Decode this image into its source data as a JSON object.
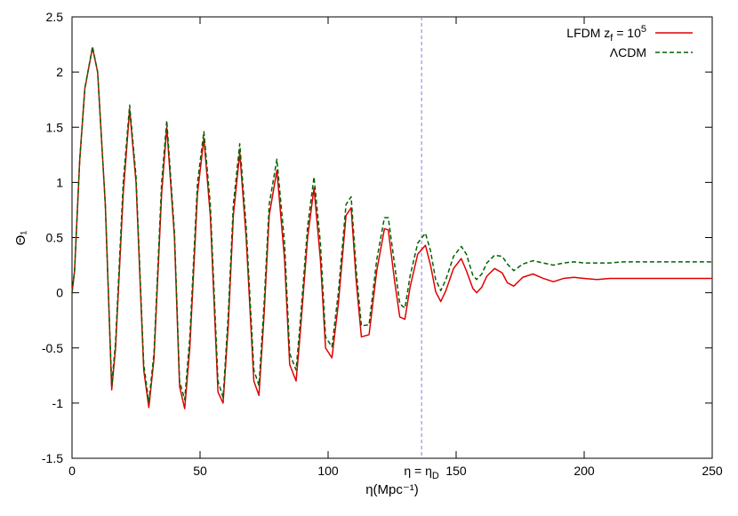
{
  "chart_data": {
    "type": "line",
    "xlabel": "η(Mpc⁻¹)",
    "ylabel": "Θ₁",
    "xlim": [
      0,
      250
    ],
    "ylim": [
      -1.5,
      2.5
    ],
    "x_ticks": [
      "0",
      "50",
      "100",
      "150",
      "200",
      "250"
    ],
    "y_ticks": [
      "-1.5",
      "-1",
      "-0.5",
      "0",
      "0.5",
      "1",
      "1.5",
      "2",
      "2.5"
    ],
    "grid": false,
    "legend_position": "top-right",
    "annotation": {
      "text": "η = η",
      "subscript": "D",
      "x": 136.5,
      "line_style": "dashed",
      "color": "#8080e0"
    },
    "series": [
      {
        "name": "LFDM z",
        "name_sub": "f",
        "name_rest": " = 10",
        "name_sup": "5",
        "color": "#e00000",
        "line_style": "solid",
        "x": [
          0,
          1,
          3,
          5,
          8,
          10,
          13,
          15.5,
          17,
          20,
          22.5,
          25,
          28,
          30,
          32,
          35,
          37,
          40,
          42,
          44,
          46,
          49,
          51.5,
          54,
          57,
          59,
          61,
          63,
          65.5,
          68,
          71,
          73,
          75,
          77,
          80,
          83,
          85,
          87.5,
          89,
          92,
          94.5,
          97,
          99,
          101.5,
          104,
          107,
          109,
          111,
          113,
          116,
          119,
          122,
          123.5,
          126,
          128,
          130,
          132,
          135,
          138,
          140,
          142,
          144,
          146,
          149,
          152,
          154,
          156.5,
          158,
          160,
          162,
          165,
          168,
          170,
          172.5,
          176,
          180,
          184,
          188,
          192,
          196,
          200,
          205,
          210,
          215,
          220,
          230,
          240,
          250
        ],
        "y": [
          0,
          0.2,
          1.2,
          1.85,
          2.22,
          2.0,
          0.8,
          -0.88,
          -0.5,
          0.9,
          1.66,
          1.0,
          -0.7,
          -1.04,
          -0.6,
          0.9,
          1.5,
          0.5,
          -0.85,
          -1.05,
          -0.5,
          0.9,
          1.4,
          0.7,
          -0.9,
          -1.0,
          -0.3,
          0.7,
          1.27,
          0.5,
          -0.8,
          -0.93,
          -0.2,
          0.7,
          1.11,
          0.3,
          -0.65,
          -0.8,
          -0.4,
          0.5,
          0.95,
          0.3,
          -0.5,
          -0.59,
          -0.1,
          0.7,
          0.77,
          0.1,
          -0.4,
          -0.38,
          0.2,
          0.58,
          0.57,
          0.1,
          -0.22,
          -0.24,
          0.05,
          0.35,
          0.43,
          0.25,
          0.01,
          -0.08,
          0.02,
          0.22,
          0.31,
          0.2,
          0.04,
          0.0,
          0.05,
          0.15,
          0.22,
          0.18,
          0.09,
          0.06,
          0.14,
          0.17,
          0.13,
          0.1,
          0.13,
          0.14,
          0.13,
          0.12,
          0.13,
          0.13,
          0.13,
          0.13,
          0.13,
          0.13
        ]
      },
      {
        "name": "ΛCDM",
        "color": "#006400",
        "line_style": "dashed",
        "x": [
          0,
          1,
          3,
          5,
          8,
          10,
          13,
          15.5,
          17,
          20,
          22.5,
          25,
          28,
          30,
          32,
          35,
          37,
          40,
          42,
          44,
          46,
          49,
          51.5,
          54,
          57,
          59,
          61,
          63,
          65.5,
          68,
          71,
          73,
          75,
          77,
          80,
          83,
          85,
          87.5,
          89,
          92,
          94.5,
          97,
          99,
          101.5,
          104,
          107,
          109,
          111,
          113,
          116,
          119,
          122,
          123.5,
          126,
          128,
          130,
          132,
          135,
          138,
          140,
          142,
          144,
          146,
          149,
          152,
          154,
          156.5,
          158,
          160,
          162,
          165,
          168,
          170,
          172.5,
          176,
          180,
          184,
          188,
          192,
          196,
          200,
          205,
          210,
          215,
          220,
          230,
          240,
          250
        ],
        "y": [
          0,
          0.2,
          1.2,
          1.85,
          2.23,
          2.0,
          0.8,
          -0.84,
          -0.45,
          1.0,
          1.7,
          1.05,
          -0.65,
          -0.99,
          -0.55,
          1.0,
          1.56,
          0.55,
          -0.8,
          -0.97,
          -0.4,
          1.0,
          1.46,
          0.8,
          -0.8,
          -0.95,
          -0.2,
          0.8,
          1.35,
          0.6,
          -0.7,
          -0.84,
          -0.1,
          0.8,
          1.21,
          0.45,
          -0.55,
          -0.7,
          -0.3,
          0.6,
          1.05,
          0.45,
          -0.4,
          -0.49,
          0.0,
          0.8,
          0.87,
          0.2,
          -0.3,
          -0.29,
          0.3,
          0.68,
          0.68,
          0.25,
          -0.1,
          -0.14,
          0.15,
          0.45,
          0.54,
          0.38,
          0.12,
          0.02,
          0.12,
          0.33,
          0.42,
          0.35,
          0.16,
          0.12,
          0.17,
          0.27,
          0.34,
          0.33,
          0.26,
          0.2,
          0.26,
          0.29,
          0.27,
          0.25,
          0.27,
          0.28,
          0.27,
          0.27,
          0.27,
          0.28,
          0.28,
          0.28,
          0.28,
          0.28
        ]
      }
    ]
  }
}
